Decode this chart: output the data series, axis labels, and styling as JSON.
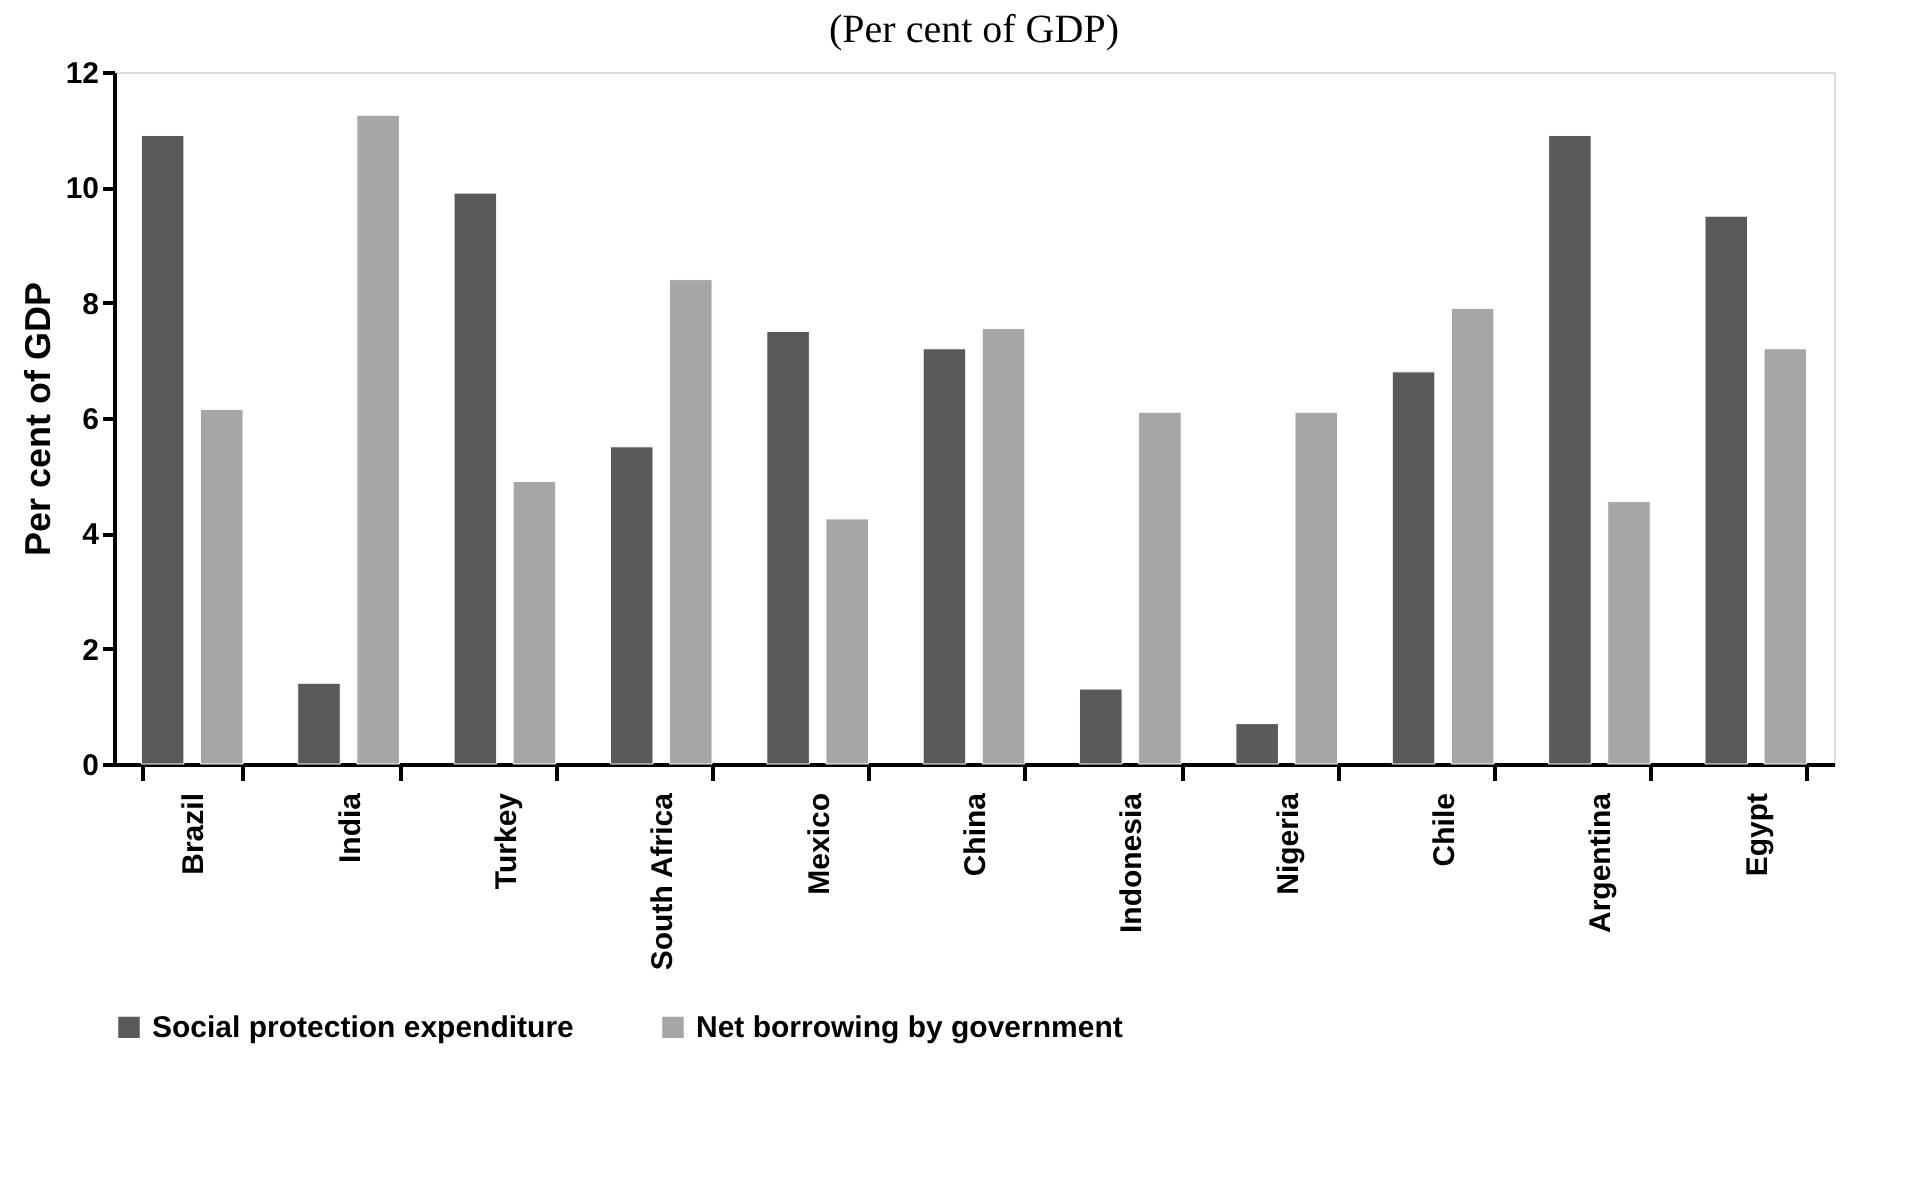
{
  "chart_data": {
    "type": "bar",
    "title": "(Per cent of GDP)",
    "ylabel": "Per cent of GDP",
    "categories": [
      "Brazil",
      "India",
      "Turkey",
      "South Africa",
      "Mexico",
      "China",
      "Indonesia",
      "Nigeria",
      "Chile",
      "Argentina",
      "Egypt"
    ],
    "series": [
      {
        "name": "Social protection expenditure",
        "color": "#595959",
        "values": [
          10.9,
          1.4,
          9.9,
          5.5,
          7.5,
          7.2,
          1.3,
          0.7,
          6.8,
          10.9,
          9.5
        ]
      },
      {
        "name": "Net borrowing by government",
        "color": "#a6a6a6",
        "values": [
          6.15,
          11.25,
          4.9,
          8.4,
          4.25,
          7.55,
          6.1,
          6.1,
          7.9,
          4.55,
          7.2
        ]
      }
    ],
    "ylim": [
      0,
      12
    ],
    "yticks": [
      0,
      2,
      4,
      6,
      8,
      10,
      12
    ],
    "grid": false,
    "legend": "bottom"
  }
}
